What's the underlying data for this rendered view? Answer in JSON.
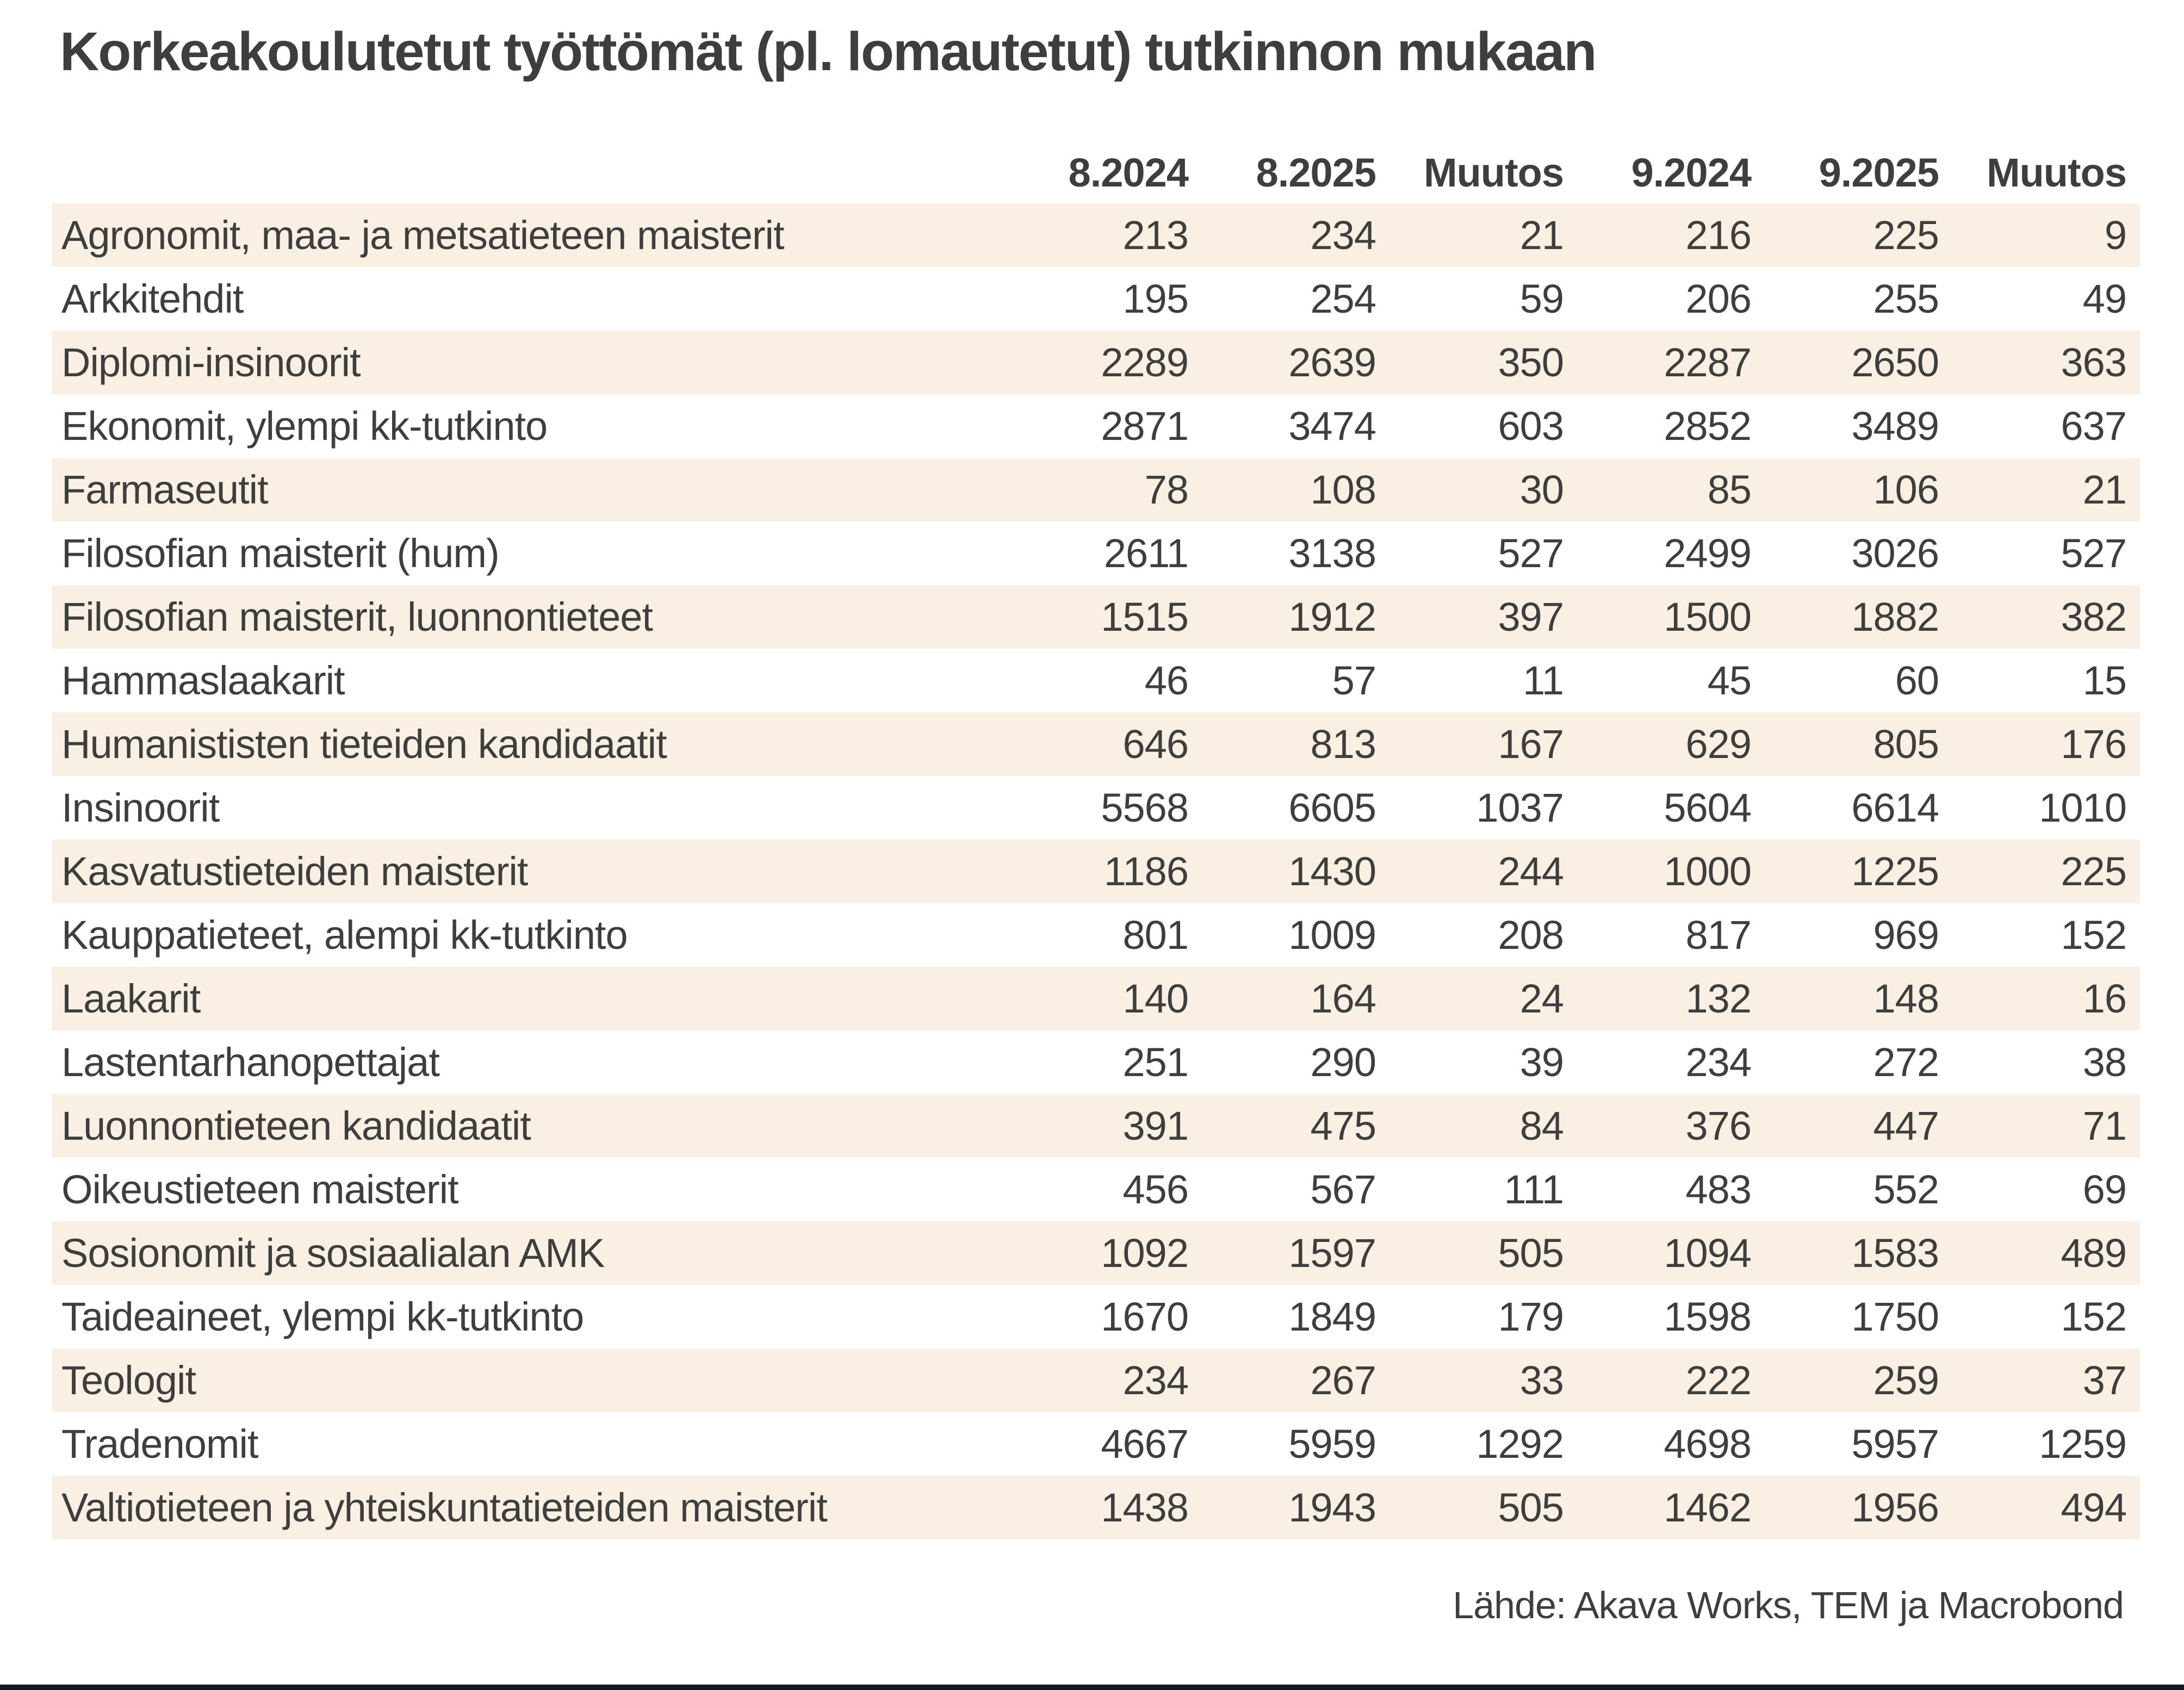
{
  "page": {
    "title": "Korkeakoulutetut työttömät (pl. lomautetut) tutkinnon mukaan",
    "source": "Lähde: Akava Works, TEM ja Macrobond"
  },
  "colors": {
    "row_shade": "#f9efe3",
    "text": "#3e3e3e",
    "bottom_bar": "#101828"
  },
  "chart_data": {
    "type": "table",
    "title": "Korkeakoulutetut työttömät (pl. lomautetut) tutkinnon mukaan",
    "columns": [
      "8.2024",
      "8.2025",
      "Muutos",
      "9.2024",
      "9.2025",
      "Muutos"
    ],
    "rows": [
      {
        "label": "Agronomit, maa- ja metsatieteen maisterit",
        "values": [
          213,
          234,
          21,
          216,
          225,
          9
        ]
      },
      {
        "label": "Arkkitehdit",
        "values": [
          195,
          254,
          59,
          206,
          255,
          49
        ]
      },
      {
        "label": "Diplomi-insinoorit",
        "values": [
          2289,
          2639,
          350,
          2287,
          2650,
          363
        ]
      },
      {
        "label": "Ekonomit, ylempi kk-tutkinto",
        "values": [
          2871,
          3474,
          603,
          2852,
          3489,
          637
        ]
      },
      {
        "label": "Farmaseutit",
        "values": [
          78,
          108,
          30,
          85,
          106,
          21
        ]
      },
      {
        "label": "Filosofian maisterit (hum)",
        "values": [
          2611,
          3138,
          527,
          2499,
          3026,
          527
        ]
      },
      {
        "label": "Filosofian maisterit, luonnontieteet",
        "values": [
          1515,
          1912,
          397,
          1500,
          1882,
          382
        ]
      },
      {
        "label": "Hammaslaakarit",
        "values": [
          46,
          57,
          11,
          45,
          60,
          15
        ]
      },
      {
        "label": "Humanististen tieteiden kandidaatit",
        "values": [
          646,
          813,
          167,
          629,
          805,
          176
        ]
      },
      {
        "label": "Insinoorit",
        "values": [
          5568,
          6605,
          1037,
          5604,
          6614,
          1010
        ]
      },
      {
        "label": "Kasvatustieteiden maisterit",
        "values": [
          1186,
          1430,
          244,
          1000,
          1225,
          225
        ]
      },
      {
        "label": "Kauppatieteet, alempi kk-tutkinto",
        "values": [
          801,
          1009,
          208,
          817,
          969,
          152
        ]
      },
      {
        "label": "Laakarit",
        "values": [
          140,
          164,
          24,
          132,
          148,
          16
        ]
      },
      {
        "label": "Lastentarhanopettajat",
        "values": [
          251,
          290,
          39,
          234,
          272,
          38
        ]
      },
      {
        "label": "Luonnontieteen kandidaatit",
        "values": [
          391,
          475,
          84,
          376,
          447,
          71
        ]
      },
      {
        "label": "Oikeustieteen maisterit",
        "values": [
          456,
          567,
          111,
          483,
          552,
          69
        ]
      },
      {
        "label": "Sosionomit ja sosiaalialan AMK",
        "values": [
          1092,
          1597,
          505,
          1094,
          1583,
          489
        ]
      },
      {
        "label": "Taideaineet, ylempi kk-tutkinto",
        "values": [
          1670,
          1849,
          179,
          1598,
          1750,
          152
        ]
      },
      {
        "label": "Teologit",
        "values": [
          234,
          267,
          33,
          222,
          259,
          37
        ]
      },
      {
        "label": "Tradenomit",
        "values": [
          4667,
          5959,
          1292,
          4698,
          5957,
          1259
        ]
      },
      {
        "label": "Valtiotieteen ja yhteiskuntatieteiden maisterit",
        "values": [
          1438,
          1943,
          505,
          1462,
          1956,
          494
        ]
      }
    ]
  }
}
